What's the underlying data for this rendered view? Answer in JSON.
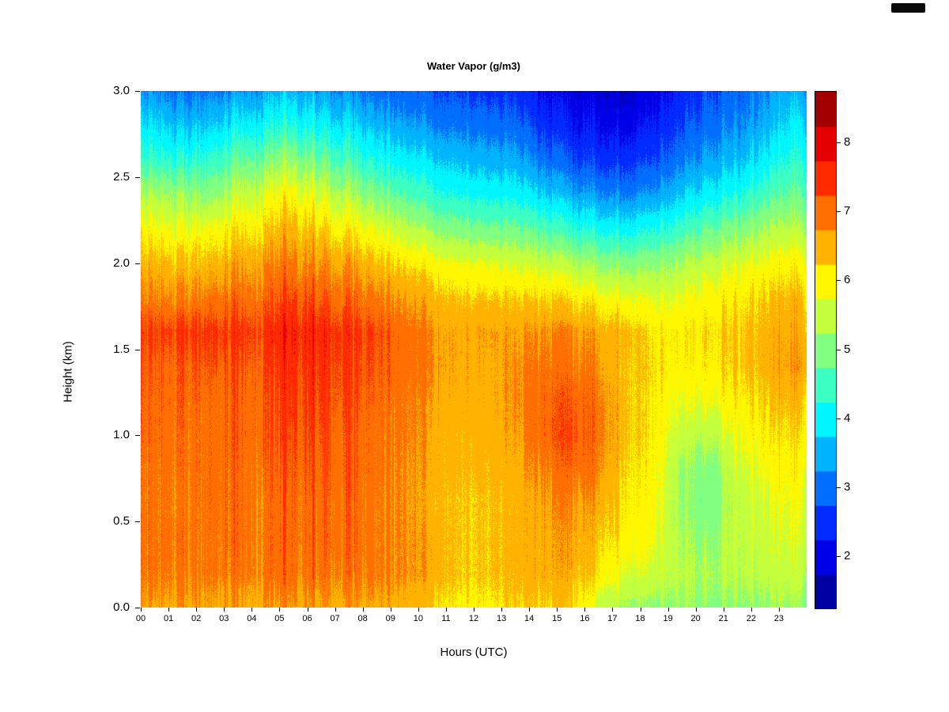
{
  "title": "Water Vapor (g/m3)",
  "xlabel": "Hours (UTC)",
  "ylabel": "Height (km)",
  "chart_data": {
    "type": "heatmap",
    "title": "Water Vapor (g/m3)",
    "xlabel": "Hours (UTC)",
    "ylabel": "Height (km)",
    "x_hours": [
      "00",
      "01",
      "02",
      "03",
      "04",
      "05",
      "06",
      "07",
      "08",
      "09",
      "10",
      "11",
      "12",
      "13",
      "14",
      "15",
      "16",
      "17",
      "18",
      "19",
      "20",
      "21",
      "22",
      "23"
    ],
    "xlim": [
      0,
      24
    ],
    "ylim": [
      0,
      3
    ],
    "y_ticks": [
      {
        "label": "3.0",
        "value": 3.0
      },
      {
        "label": "2.5",
        "value": 2.5
      },
      {
        "label": "2.0",
        "value": 2.0
      },
      {
        "label": "1.5",
        "value": 1.5
      },
      {
        "label": "1.0",
        "value": 1.0
      },
      {
        "label": "0.5",
        "value": 0.5
      },
      {
        "label": "0.0",
        "value": 0.0
      }
    ],
    "colorbar": {
      "ticks": [
        2,
        3,
        4,
        5,
        6,
        7,
        8
      ],
      "vmin": 1.25,
      "vmax": 8.75,
      "level_step": 0.5,
      "colormap": "jet",
      "units": "g/m3"
    },
    "grid": {
      "hours_are_columns": true,
      "heights_km": [
        0.0,
        0.2,
        0.4,
        0.6,
        0.8,
        1.0,
        1.2,
        1.4,
        1.6,
        1.8,
        2.0,
        2.2,
        2.4,
        2.6,
        2.8,
        3.0
      ],
      "values_by_hour": [
        [
          6.6,
          6.9,
          6.9,
          6.9,
          6.9,
          7.0,
          7.0,
          7.1,
          7.3,
          6.8,
          6.4,
          5.9,
          5.3,
          4.4,
          3.8,
          3.2
        ],
        [
          6.6,
          6.9,
          7.0,
          6.9,
          7.0,
          7.0,
          7.1,
          7.1,
          7.4,
          6.8,
          6.4,
          5.8,
          5.2,
          4.3,
          3.6,
          3.0
        ],
        [
          6.6,
          6.9,
          6.9,
          7.0,
          7.0,
          7.0,
          7.0,
          7.2,
          7.4,
          6.9,
          6.4,
          5.9,
          5.1,
          4.4,
          3.7,
          3.1
        ],
        [
          6.6,
          6.9,
          7.0,
          7.0,
          7.0,
          7.1,
          7.1,
          7.2,
          7.4,
          7.0,
          6.6,
          6.1,
          5.5,
          4.8,
          4.0,
          3.3
        ],
        [
          6.7,
          7.0,
          7.0,
          7.0,
          7.1,
          7.2,
          7.2,
          7.3,
          7.5,
          7.1,
          6.8,
          6.3,
          5.8,
          5.0,
          4.2,
          3.5
        ],
        [
          6.7,
          7.0,
          7.1,
          7.1,
          7.2,
          7.3,
          7.4,
          7.5,
          7.7,
          7.3,
          6.9,
          6.5,
          6.0,
          5.2,
          4.3,
          3.6
        ],
        [
          6.7,
          7.0,
          7.1,
          7.1,
          7.2,
          7.3,
          7.4,
          7.5,
          7.6,
          7.2,
          6.8,
          6.3,
          5.7,
          4.9,
          4.1,
          3.4
        ],
        [
          6.6,
          6.9,
          7.0,
          7.0,
          7.1,
          7.1,
          7.2,
          7.3,
          7.4,
          7.0,
          6.6,
          6.0,
          5.3,
          4.5,
          3.8,
          3.2
        ],
        [
          6.6,
          6.9,
          6.9,
          6.9,
          7.0,
          7.0,
          7.1,
          7.2,
          7.3,
          6.9,
          6.4,
          5.8,
          5.0,
          4.2,
          3.6,
          3.0
        ],
        [
          6.5,
          6.8,
          6.8,
          6.8,
          6.8,
          6.9,
          6.9,
          7.0,
          7.0,
          6.7,
          6.2,
          5.5,
          4.7,
          4.0,
          3.4,
          2.9
        ],
        [
          6.3,
          6.6,
          6.6,
          6.5,
          6.6,
          6.6,
          6.7,
          6.8,
          6.8,
          6.5,
          6.0,
          5.2,
          4.4,
          3.8,
          3.2,
          2.8
        ],
        [
          6.1,
          6.3,
          6.3,
          6.3,
          6.4,
          6.4,
          6.5,
          6.6,
          6.6,
          6.3,
          5.8,
          5.0,
          4.2,
          3.6,
          3.1,
          2.7
        ],
        [
          6.1,
          6.3,
          6.3,
          6.3,
          6.4,
          6.5,
          6.6,
          6.6,
          6.7,
          6.3,
          5.8,
          4.9,
          4.1,
          3.5,
          3.0,
          2.6
        ],
        [
          6.2,
          6.4,
          6.4,
          6.4,
          6.5,
          6.6,
          6.7,
          6.7,
          6.6,
          6.2,
          5.6,
          4.8,
          4.0,
          3.4,
          2.9,
          2.5
        ],
        [
          6.3,
          6.6,
          6.6,
          6.7,
          6.9,
          7.1,
          7.1,
          7.0,
          6.8,
          6.3,
          5.6,
          4.7,
          3.8,
          3.1,
          2.6,
          2.2
        ],
        [
          6.3,
          6.6,
          6.7,
          6.8,
          7.1,
          7.3,
          7.2,
          7.0,
          6.8,
          6.2,
          5.4,
          4.4,
          3.5,
          2.8,
          2.3,
          2.0
        ],
        [
          5.6,
          6.2,
          6.4,
          6.6,
          6.9,
          7.0,
          7.0,
          6.8,
          6.6,
          6.0,
          5.2,
          4.2,
          3.3,
          2.6,
          2.2,
          1.9
        ],
        [
          5.3,
          5.8,
          6.1,
          6.2,
          6.3,
          6.4,
          6.4,
          6.4,
          6.5,
          5.9,
          5.1,
          4.1,
          3.2,
          2.6,
          2.1,
          1.8
        ],
        [
          5.2,
          5.7,
          5.9,
          6.0,
          6.1,
          6.2,
          6.2,
          6.3,
          6.2,
          5.8,
          5.2,
          4.3,
          3.4,
          2.8,
          2.4,
          2.1
        ],
        [
          5.2,
          5.4,
          5.3,
          5.2,
          5.2,
          5.5,
          5.8,
          6.0,
          6.1,
          5.8,
          5.3,
          4.5,
          3.7,
          3.1,
          2.7,
          2.4
        ],
        [
          5.1,
          5.3,
          5.1,
          4.9,
          5.0,
          5.4,
          5.8,
          6.1,
          6.2,
          6.0,
          5.5,
          4.8,
          4.0,
          3.4,
          3.0,
          2.7
        ],
        [
          5.1,
          5.4,
          5.5,
          5.5,
          5.6,
          5.8,
          6.1,
          6.3,
          6.3,
          6.1,
          5.7,
          5.0,
          4.2,
          3.6,
          3.2,
          2.9
        ],
        [
          5.2,
          5.5,
          5.6,
          5.7,
          5.9,
          6.1,
          6.3,
          6.5,
          6.5,
          6.3,
          5.9,
          5.3,
          4.6,
          4.0,
          3.5,
          3.2
        ],
        [
          5.2,
          5.5,
          5.7,
          5.8,
          6.0,
          6.2,
          6.4,
          6.7,
          6.6,
          6.4,
          6.0,
          5.4,
          4.8,
          4.3,
          3.9,
          3.5
        ]
      ]
    },
    "noise": {
      "column_amp_by_hour": [
        0.45,
        0.45,
        0.45,
        0.45,
        0.5,
        0.5,
        0.5,
        0.45,
        0.4,
        0.35,
        0.25,
        0.25,
        0.25,
        0.3,
        0.4,
        0.4,
        0.4,
        0.35,
        0.3,
        0.3,
        0.35,
        0.35,
        0.4,
        0.4
      ],
      "pixel_amp": 0.12
    }
  }
}
